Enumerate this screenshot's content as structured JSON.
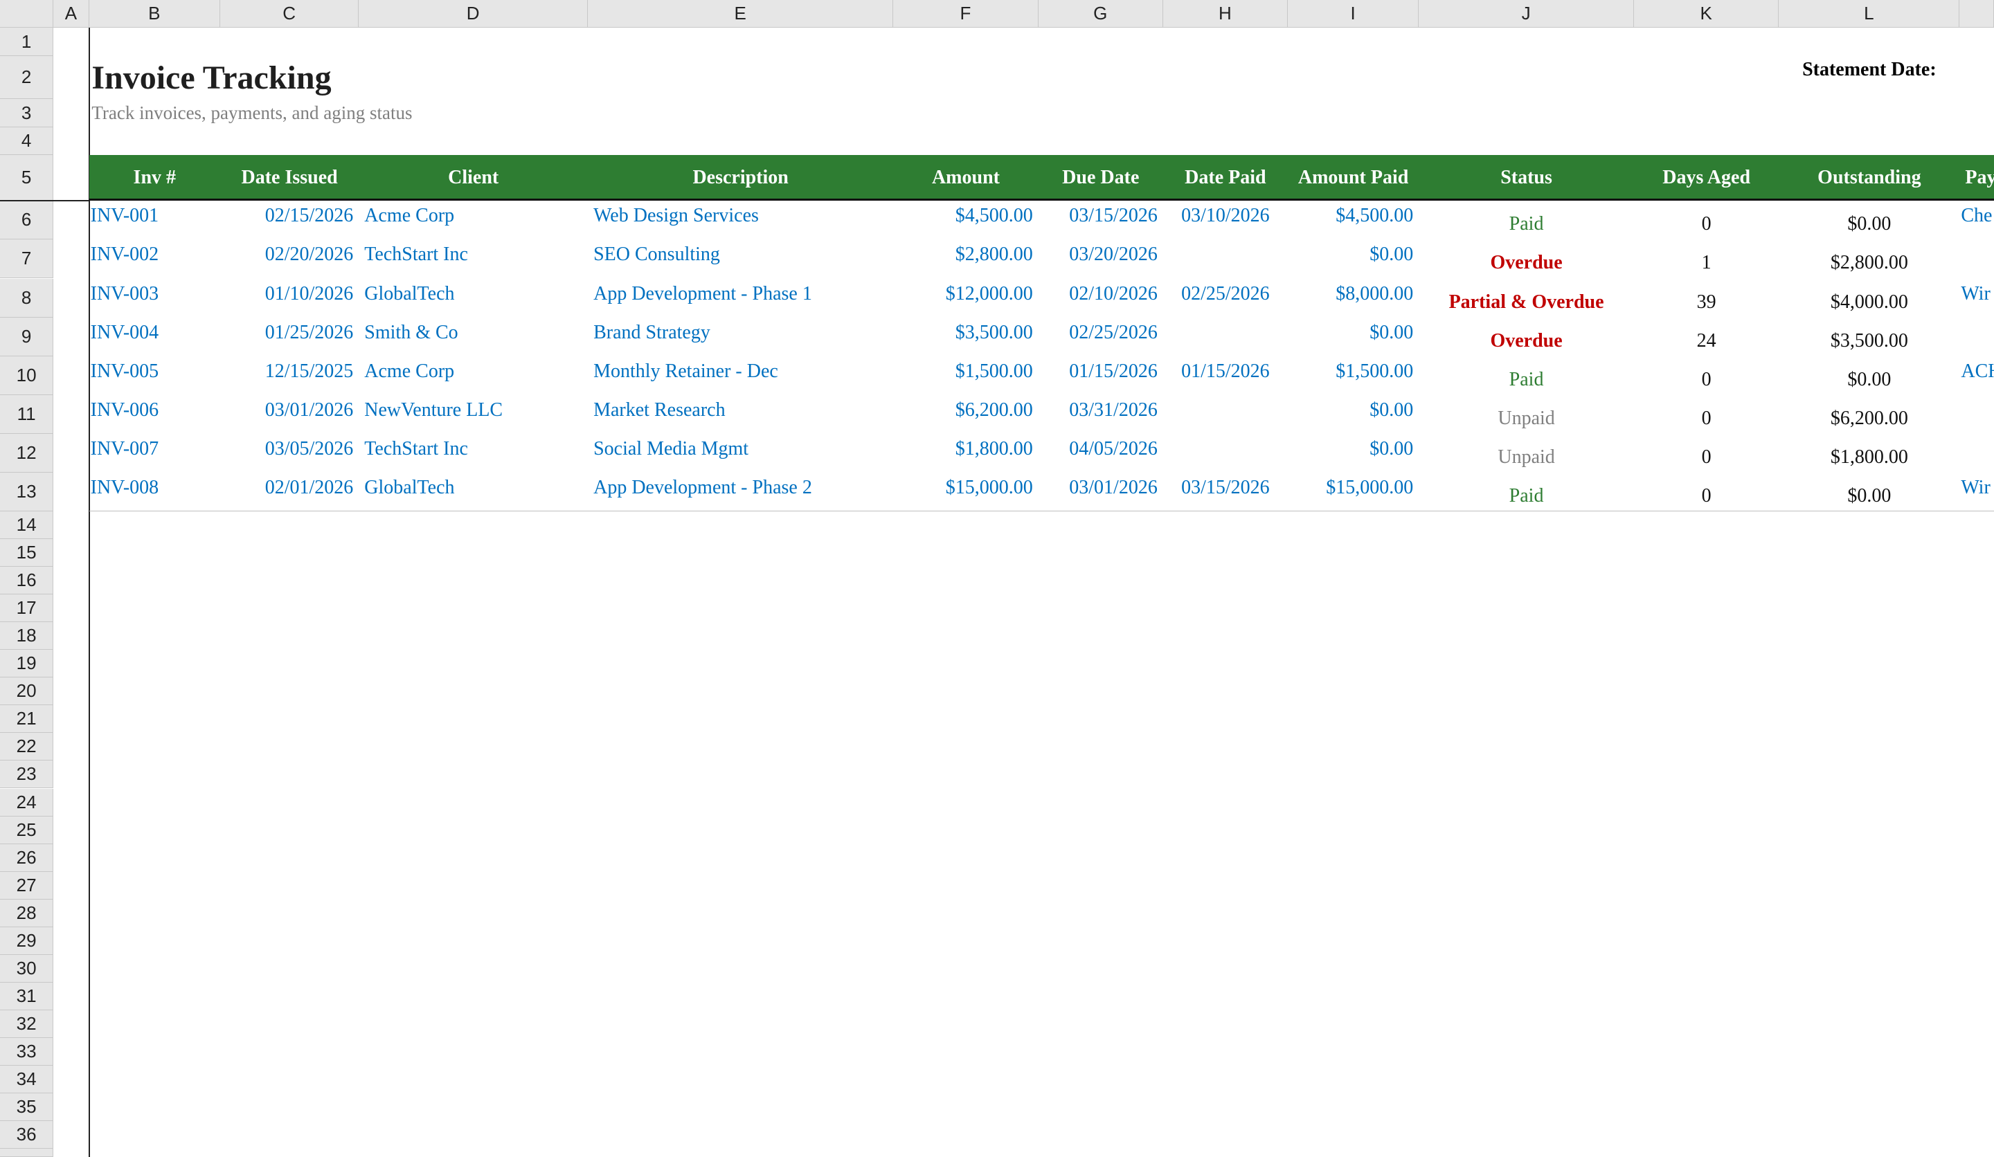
{
  "columns": [
    "A",
    "B",
    "C",
    "D",
    "E",
    "F",
    "G",
    "H",
    "I",
    "J",
    "K",
    "L"
  ],
  "row_numbers": [
    1,
    2,
    3,
    4,
    5,
    6,
    7,
    8,
    9,
    10,
    11,
    12,
    13,
    14,
    15,
    16,
    17,
    18,
    19,
    20,
    21,
    22,
    23,
    24,
    25,
    26,
    27,
    28,
    29,
    30,
    31,
    32,
    33,
    34,
    35,
    36
  ],
  "title": "Invoice Tracking",
  "subtitle": "Track invoices, payments, and aging status",
  "statement_date_label": "Statement Date:",
  "table": {
    "header": [
      "Inv #",
      "Date Issued",
      "Client",
      "Description",
      "Amount",
      "Due Date",
      "Date Paid",
      "Amount Paid",
      "Status",
      "Days Aged",
      "Outstanding",
      "Pay"
    ],
    "rows": [
      [
        "INV-001",
        "02/15/2026",
        "Acme Corp",
        "Web Design Services",
        "$4,500.00",
        "03/15/2026",
        "03/10/2026",
        "$4,500.00",
        "Paid",
        0,
        "$0.00",
        "Che"
      ],
      [
        "INV-002",
        "02/20/2026",
        "TechStart Inc",
        "SEO Consulting",
        "$2,800.00",
        "03/20/2026",
        null,
        "$0.00",
        "Overdue",
        1,
        "$2,800.00",
        null
      ],
      [
        "INV-003",
        "01/10/2026",
        "GlobalTech",
        "App Development - Phase 1",
        "$12,000.00",
        "02/10/2026",
        "02/25/2026",
        "$8,000.00",
        "Partial & Overdue",
        39,
        "$4,000.00",
        "Wir"
      ],
      [
        "INV-004",
        "01/25/2026",
        "Smith & Co",
        "Brand Strategy",
        "$3,500.00",
        "02/25/2026",
        null,
        "$0.00",
        "Overdue",
        24,
        "$3,500.00",
        null
      ],
      [
        "INV-005",
        "12/15/2025",
        "Acme Corp",
        "Monthly Retainer - Dec",
        "$1,500.00",
        "01/15/2026",
        "01/15/2026",
        "$1,500.00",
        "Paid",
        0,
        "$0.00",
        "ACH"
      ],
      [
        "INV-006",
        "03/01/2026",
        "NewVenture LLC",
        "Market Research",
        "$6,200.00",
        "03/31/2026",
        null,
        "$0.00",
        "Unpaid",
        0,
        "$6,200.00",
        null
      ],
      [
        "INV-007",
        "03/05/2026",
        "TechStart Inc",
        "Social Media Mgmt",
        "$1,800.00",
        "04/05/2026",
        null,
        "$0.00",
        "Unpaid",
        0,
        "$1,800.00",
        null
      ],
      [
        "INV-008",
        "02/01/2026",
        "GlobalTech",
        "App Development - Phase 2",
        "$15,000.00",
        "03/01/2026",
        "03/15/2026",
        "$15,000.00",
        "Paid",
        0,
        "$0.00",
        "Wir"
      ]
    ]
  }
}
